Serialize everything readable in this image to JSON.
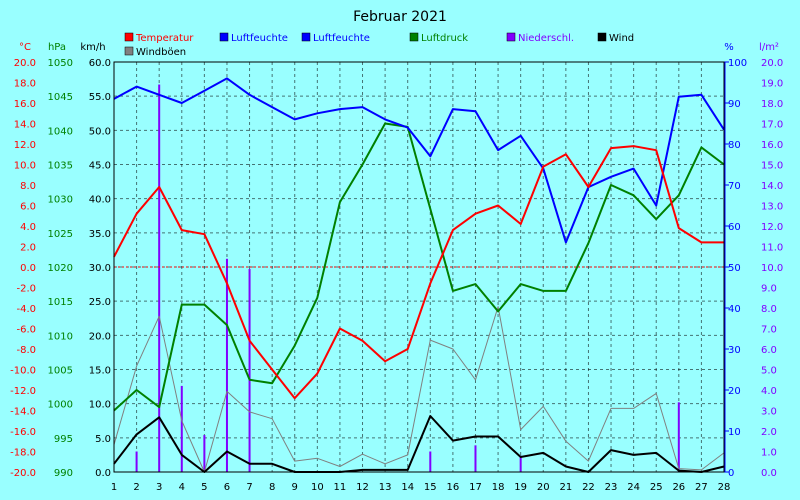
{
  "chart_data": {
    "type": "line",
    "title": "Februar 2021",
    "days": [
      1,
      2,
      3,
      4,
      5,
      6,
      7,
      8,
      9,
      10,
      11,
      12,
      13,
      14,
      15,
      16,
      17,
      18,
      19,
      20,
      21,
      22,
      23,
      24,
      25,
      26,
      27,
      28
    ],
    "x_ticks": [
      "1",
      "2",
      "3",
      "4",
      "5",
      "6",
      "7",
      "8",
      "9",
      "10",
      "11",
      "12",
      "13",
      "14",
      "15",
      "16",
      "17",
      "18",
      "19",
      "20",
      "21",
      "22",
      "23",
      "24",
      "25",
      "26",
      "27",
      "28"
    ],
    "axes": {
      "temp": {
        "unit": "°C",
        "color": "#ff0000",
        "min": -20,
        "max": 20,
        "step": 2,
        "ticks": [
          "-20.0",
          "-18.0",
          "-16.0",
          "-14.0",
          "-12.0",
          "-10.0",
          "-8.0",
          "-6.0",
          "-4.0",
          "-2.0",
          "0.0",
          "2.0",
          "4.0",
          "6.0",
          "8.0",
          "10.0",
          "12.0",
          "14.0",
          "16.0",
          "18.0",
          "20.0"
        ]
      },
      "pressure": {
        "unit": "hPa",
        "color": "#008000",
        "min": 990,
        "max": 1050,
        "step": 5,
        "ticks": [
          "990",
          "995",
          "1000",
          "1005",
          "1010",
          "1015",
          "1020",
          "1025",
          "1030",
          "1035",
          "1040",
          "1045",
          "1050"
        ]
      },
      "wind": {
        "unit": "km/h",
        "color": "#000000",
        "min": 0,
        "max": 60,
        "step": 5,
        "ticks": [
          "0.0",
          "5.0",
          "10.0",
          "15.0",
          "20.0",
          "25.0",
          "30.0",
          "35.0",
          "40.0",
          "45.0",
          "50.0",
          "55.0",
          "60.0"
        ]
      },
      "humidity": {
        "unit": "%",
        "color": "#0000ff",
        "min": 0,
        "max": 100,
        "step": 10,
        "ticks": [
          "0",
          "10",
          "20",
          "30",
          "40",
          "50",
          "60",
          "70",
          "80",
          "90",
          "100"
        ]
      },
      "precip": {
        "unit": "l/m²",
        "color": "#8000ff",
        "min": 0,
        "max": 20,
        "step": 1,
        "ticks": [
          "0.0",
          "1.0",
          "2.0",
          "3.0",
          "4.0",
          "5.0",
          "6.0",
          "7.0",
          "8.0",
          "9.0",
          "10.0",
          "11.0",
          "12.0",
          "13.0",
          "14.0",
          "15.0",
          "16.0",
          "17.0",
          "18.0",
          "19.0",
          "20.0"
        ]
      }
    },
    "legend": [
      {
        "label": "Temperatur",
        "color": "#ff0000"
      },
      {
        "label": "Luftfeuchte",
        "color": "#0000ff"
      },
      {
        "label": "Luftfeuchte",
        "color": "#0000ff"
      },
      {
        "label": "Luftdruck",
        "color": "#008000"
      },
      {
        "label": "Niederschl.",
        "color": "#8000ff"
      },
      {
        "label": "Wind",
        "color": "#000000"
      },
      {
        "label": "Windböen",
        "color": "#808080"
      }
    ],
    "series": [
      {
        "name": "Temperatur",
        "axis": "temp",
        "color": "#ff0000",
        "width": 2,
        "values": [
          1.0,
          5.2,
          7.8,
          3.6,
          3.2,
          -1.6,
          -7.2,
          -10.0,
          -12.8,
          -10.4,
          -6.0,
          -7.2,
          -9.2,
          -8.0,
          -1.6,
          3.6,
          5.2,
          6.0,
          4.2,
          9.8,
          11.0,
          7.8,
          11.6,
          11.8,
          11.4,
          3.8,
          2.4,
          2.4
        ]
      },
      {
        "name": "Luftfeuchte",
        "axis": "humidity",
        "color": "#0000ff",
        "width": 2,
        "values": [
          91,
          94,
          92,
          90,
          93,
          96,
          92,
          89,
          86,
          87.5,
          88.5,
          89,
          86,
          84,
          77,
          88.5,
          88,
          78.5,
          82,
          74,
          56,
          69.5,
          72,
          74,
          65,
          91.5,
          92,
          83.5
        ]
      },
      {
        "name": "Luftdruck",
        "axis": "pressure",
        "color": "#008000",
        "width": 2,
        "values": [
          999,
          1002,
          999.5,
          1014.5,
          1014.5,
          1011.5,
          1003.5,
          1003,
          1008.5,
          1015.5,
          1029.5,
          1035,
          1041,
          1040.5,
          1028.5,
          1016.5,
          1017.5,
          1013.5,
          1017.5,
          1016.5,
          1016.5,
          1023.5,
          1032,
          1030.5,
          1027,
          1030.5,
          1037.5,
          1035
        ]
      },
      {
        "name": "Wind",
        "axis": "wind",
        "color": "#000000",
        "width": 2,
        "values": [
          1.2,
          5.5,
          8.0,
          2.5,
          0.0,
          3.0,
          1.2,
          1.2,
          0.0,
          0.0,
          0.0,
          0.3,
          0.3,
          0.3,
          8.2,
          4.6,
          5.2,
          5.2,
          2.2,
          2.8,
          0.8,
          0.0,
          3.2,
          2.5,
          2.8,
          0.2,
          0.0,
          0.8
        ]
      },
      {
        "name": "Windböen",
        "axis": "wind",
        "color": "#808080",
        "width": 1,
        "values": [
          4.0,
          15.5,
          22.8,
          7.5,
          0.0,
          11.8,
          8.8,
          7.8,
          1.6,
          2.0,
          0.8,
          2.6,
          1.2,
          2.5,
          19.3,
          18.0,
          13.5,
          24.2,
          6.2,
          9.6,
          4.5,
          1.6,
          9.3,
          9.3,
          11.5,
          0.5,
          0.3,
          2.8
        ]
      }
    ],
    "precipitation": {
      "name": "Niederschl.",
      "axis": "precip",
      "color": "#8000ff",
      "values": [
        0,
        1.0,
        18.9,
        4.2,
        1.8,
        10.4,
        9.9,
        0,
        0,
        0,
        0,
        0,
        0,
        0,
        1.0,
        0,
        1.3,
        0,
        0.8,
        0,
        0,
        0,
        0,
        0,
        0,
        3.4,
        0,
        0
      ]
    },
    "reference_line": {
      "axis": "temp",
      "value": 0,
      "color": "#ff0000"
    },
    "grid": true
  }
}
